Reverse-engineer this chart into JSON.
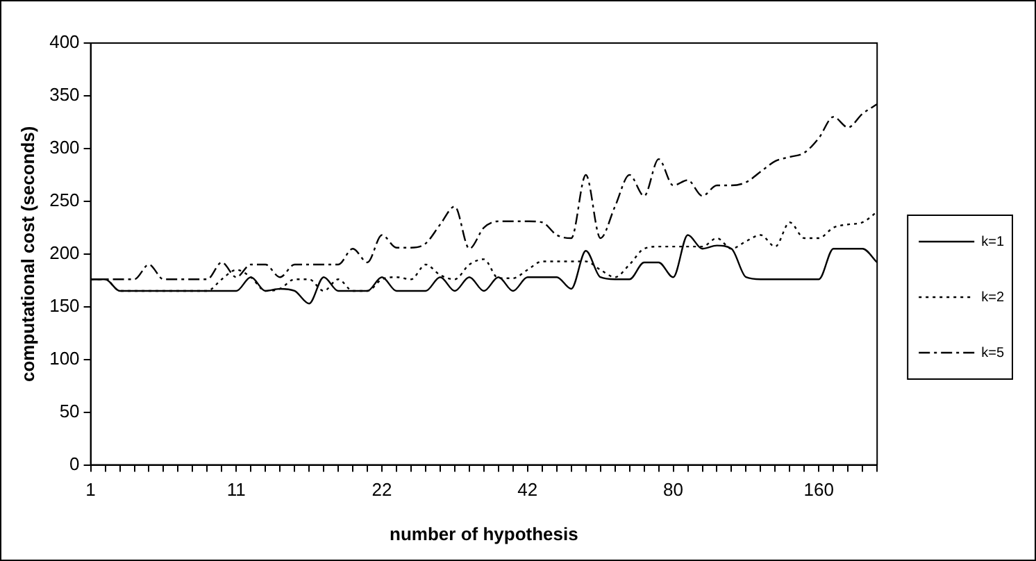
{
  "chart_data": {
    "type": "line",
    "xlabel": "number of hypothesis",
    "ylabel": "computational cost (seconds)",
    "categories": [
      "1",
      null,
      null,
      null,
      null,
      null,
      null,
      null,
      null,
      null,
      "11",
      null,
      null,
      null,
      null,
      null,
      null,
      null,
      null,
      null,
      "22",
      null,
      null,
      null,
      null,
      null,
      null,
      null,
      null,
      null,
      "42",
      null,
      null,
      null,
      null,
      null,
      null,
      null,
      null,
      null,
      "80",
      null,
      null,
      null,
      null,
      null,
      null,
      null,
      null,
      null,
      "160",
      null,
      null,
      null,
      null
    ],
    "series": [
      {
        "name": "k=1",
        "color": "#000000",
        "line_style": "solid",
        "values": [
          176,
          176,
          165,
          165,
          165,
          165,
          165,
          165,
          165,
          165,
          165,
          178,
          165,
          167,
          165,
          153,
          178,
          165,
          165,
          165,
          178,
          165,
          165,
          165,
          178,
          165,
          178,
          165,
          178,
          165,
          178,
          178,
          178,
          167,
          203,
          178,
          176,
          176,
          192,
          192,
          178,
          218,
          205,
          208,
          205,
          178,
          176,
          176,
          176,
          176,
          176,
          205,
          205,
          205,
          192
        ]
      },
      {
        "name": "k=2",
        "color": "#000000",
        "line_style": "dotted",
        "values": [
          176,
          176,
          165,
          165,
          165,
          165,
          165,
          165,
          165,
          176,
          185,
          178,
          165,
          167,
          176,
          176,
          165,
          176,
          165,
          165,
          176,
          178,
          176,
          190,
          180,
          176,
          190,
          195,
          177,
          177,
          185,
          193,
          193,
          193,
          193,
          185,
          178,
          190,
          205,
          207,
          207,
          207,
          207,
          215,
          205,
          212,
          218,
          207,
          230,
          215,
          215,
          225,
          228,
          230,
          240
        ]
      },
      {
        "name": "k=5",
        "color": "#000000",
        "line_style": "dashed",
        "values": [
          176,
          176,
          176,
          176,
          190,
          176,
          176,
          176,
          176,
          192,
          178,
          190,
          190,
          178,
          190,
          190,
          190,
          190,
          205,
          192,
          218,
          206,
          206,
          210,
          228,
          245,
          205,
          225,
          231,
          231,
          231,
          230,
          218,
          215,
          275,
          215,
          245,
          275,
          255,
          290,
          265,
          270,
          255,
          265,
          265,
          268,
          278,
          288,
          292,
          296,
          310,
          330,
          320,
          333,
          342
        ]
      }
    ],
    "ylim": [
      0,
      400
    ],
    "yticks": [
      0,
      50,
      100,
      150,
      200,
      250,
      300,
      350,
      400
    ],
    "grid": false,
    "legend": "right",
    "marker": "none"
  }
}
